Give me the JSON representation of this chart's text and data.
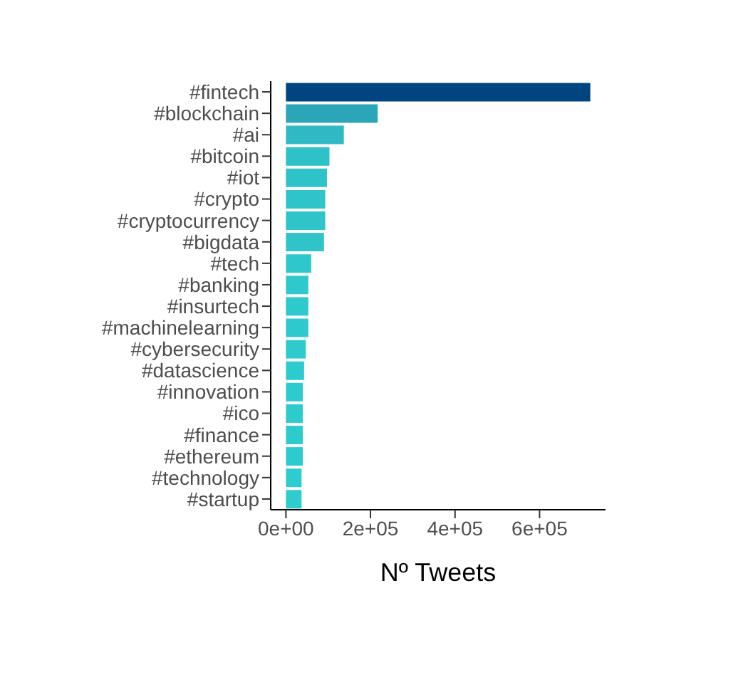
{
  "chart_data": {
    "type": "bar",
    "orientation": "horizontal",
    "xlabel": "Nº Tweets",
    "categories": [
      "#fintech",
      "#blockchain",
      "#ai",
      "#bitcoin",
      "#iot",
      "#crypto",
      "#cryptocurrency",
      "#bigdata",
      "#tech",
      "#banking",
      "#insurtech",
      "#machinelearning",
      "#cybersecurity",
      "#datascience",
      "#innovation",
      "#ico",
      "#finance",
      "#ethereum",
      "#technology",
      "#startup"
    ],
    "values": [
      720000,
      217000,
      137000,
      103000,
      97000,
      93000,
      93000,
      90000,
      60000,
      53000,
      53000,
      53000,
      47000,
      43000,
      40000,
      40000,
      40000,
      40000,
      37000,
      37000
    ],
    "colors": [
      "#00457f",
      "#2aa6b8",
      "#30b9c4",
      "#2ec1c8",
      "#2ec3c9",
      "#2ec4ca",
      "#2ec4ca",
      "#2ec4ca",
      "#2ec8cc",
      "#2ec9cd",
      "#2ec9cd",
      "#2ec9cd",
      "#2ecacd",
      "#2ecbce",
      "#2ecbce",
      "#2ecbce",
      "#2ecbce",
      "#2ecbce",
      "#2ecccf",
      "#2ecccf"
    ],
    "xlim": [
      -36000,
      756000
    ],
    "xticks": [
      {
        "value": 0,
        "label": "0e+00"
      },
      {
        "value": 200000,
        "label": "2e+05"
      },
      {
        "value": 400000,
        "label": "4e+05"
      },
      {
        "value": 600000,
        "label": "6e+05"
      }
    ],
    "grid": false,
    "legend": false
  }
}
